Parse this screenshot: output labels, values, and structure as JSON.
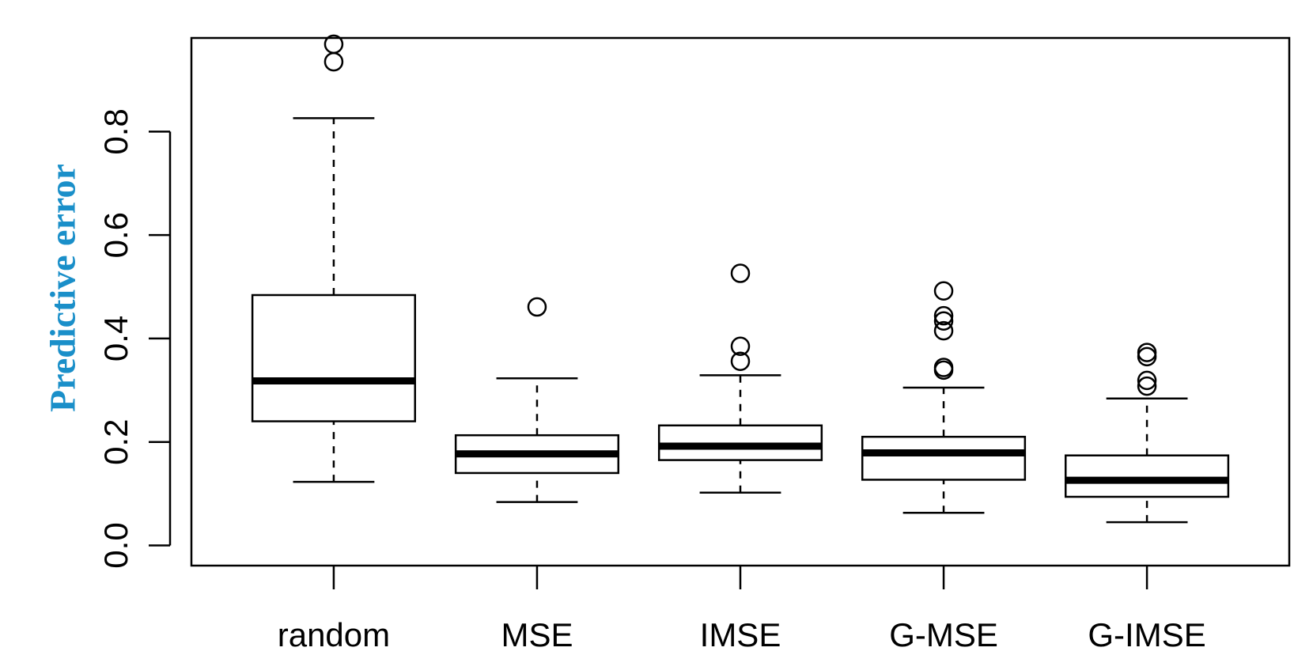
{
  "chart_data": {
    "type": "box",
    "y_label": "Predictive error",
    "y_label_color": "#1a8fc9",
    "categories": [
      "random",
      "MSE",
      "IMSE",
      "G-MSE",
      "G-IMSE"
    ],
    "boxes": [
      {
        "min": 0.123,
        "q1": 0.24,
        "median": 0.318,
        "q3": 0.484,
        "max": 0.826,
        "outliers": [
          0.935,
          0.969
        ]
      },
      {
        "min": 0.084,
        "q1": 0.14,
        "median": 0.177,
        "q3": 0.213,
        "max": 0.323,
        "outliers": [
          0.461
        ]
      },
      {
        "min": 0.102,
        "q1": 0.165,
        "median": 0.192,
        "q3": 0.232,
        "max": 0.329,
        "outliers": [
          0.526,
          0.385,
          0.356
        ]
      },
      {
        "min": 0.063,
        "q1": 0.127,
        "median": 0.179,
        "q3": 0.21,
        "max": 0.305,
        "outliers": [
          0.492,
          0.444,
          0.434,
          0.415,
          0.344,
          0.339
        ]
      },
      {
        "min": 0.045,
        "q1": 0.094,
        "median": 0.126,
        "q3": 0.174,
        "max": 0.284,
        "outliers": [
          0.373,
          0.365,
          0.319,
          0.308
        ]
      }
    ],
    "color": "#000000",
    "ylim": [
      -0.039,
      0.981
    ],
    "yticks": [
      {
        "value": 0,
        "label": "0.0"
      },
      0.2,
      0.4,
      0.6,
      0.8
    ]
  }
}
